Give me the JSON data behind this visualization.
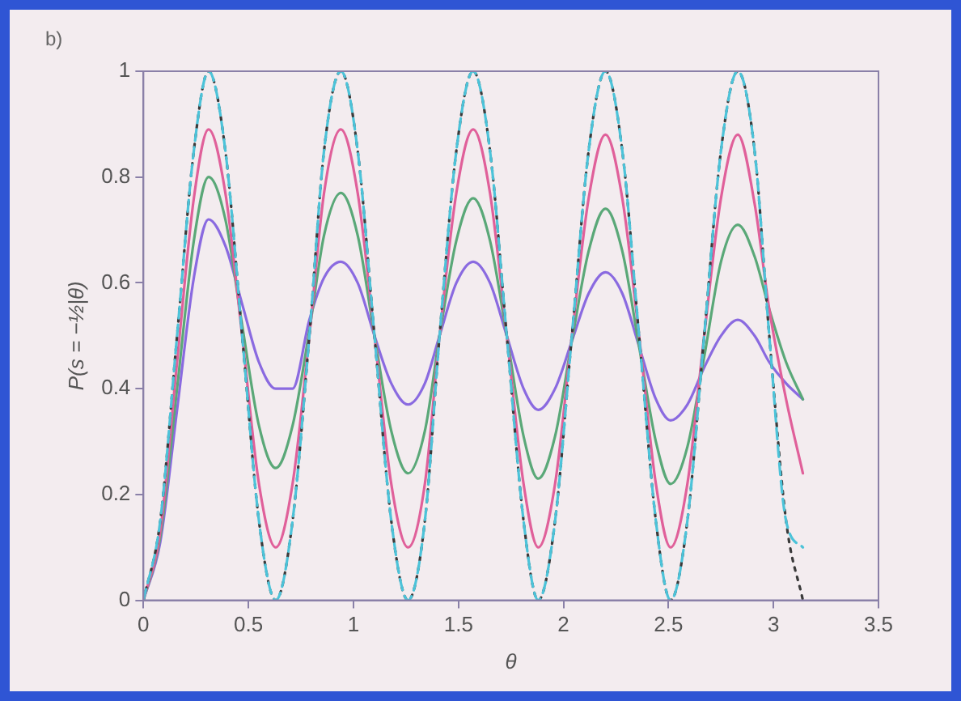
{
  "chart_data": {
    "type": "line",
    "annotations": [
      "b)"
    ],
    "xlabel": "θ",
    "ylabel": "P(s = −½|θ)",
    "x": [
      0,
      0.08,
      0.16,
      0.24,
      0.31,
      0.39,
      0.47,
      0.55,
      0.63,
      0.71,
      0.79,
      0.86,
      0.94,
      1.02,
      1.1,
      1.18,
      1.26,
      1.34,
      1.41,
      1.49,
      1.57,
      1.65,
      1.73,
      1.81,
      1.88,
      1.96,
      2.04,
      2.12,
      2.2,
      2.28,
      2.36,
      2.44,
      2.51,
      2.59,
      2.67,
      2.75,
      2.83,
      2.91,
      2.98,
      3.06,
      3.14
    ],
    "series": [
      {
        "color": "#4cc3d9",
        "line_style": "dashed",
        "values": [
          0,
          0.15,
          0.5,
          0.85,
          1,
          0.85,
          0.5,
          0.15,
          0,
          0.15,
          0.5,
          0.85,
          1,
          0.85,
          0.5,
          0.15,
          0,
          0.15,
          0.5,
          0.85,
          1,
          0.85,
          0.5,
          0.15,
          0,
          0.15,
          0.5,
          0.85,
          1,
          0.85,
          0.5,
          0.15,
          0,
          0.15,
          0.5,
          0.85,
          1,
          0.85,
          0.5,
          0.15,
          0.1
        ]
      },
      {
        "color": "#3a3a3a",
        "line_style": "dotted",
        "values": [
          0,
          0.15,
          0.5,
          0.85,
          1,
          0.85,
          0.5,
          0.15,
          0,
          0.15,
          0.5,
          0.85,
          1,
          0.85,
          0.5,
          0.15,
          0,
          0.15,
          0.5,
          0.85,
          1,
          0.85,
          0.5,
          0.15,
          0,
          0.15,
          0.5,
          0.85,
          1,
          0.85,
          0.5,
          0.15,
          0,
          0.15,
          0.5,
          0.85,
          1,
          0.85,
          0.5,
          0.15,
          0
        ]
      },
      {
        "color": "#e0609a",
        "line_style": "solid",
        "values": [
          0,
          0.13,
          0.45,
          0.76,
          0.89,
          0.77,
          0.5,
          0.22,
          0.1,
          0.22,
          0.5,
          0.77,
          0.89,
          0.77,
          0.5,
          0.22,
          0.1,
          0.22,
          0.5,
          0.77,
          0.89,
          0.77,
          0.5,
          0.22,
          0.1,
          0.22,
          0.5,
          0.76,
          0.88,
          0.76,
          0.5,
          0.22,
          0.1,
          0.22,
          0.5,
          0.76,
          0.88,
          0.75,
          0.55,
          0.38,
          0.24
        ]
      },
      {
        "color": "#5aa878",
        "line_style": "solid",
        "values": [
          0,
          0.12,
          0.4,
          0.68,
          0.8,
          0.72,
          0.52,
          0.33,
          0.25,
          0.33,
          0.51,
          0.69,
          0.77,
          0.69,
          0.5,
          0.32,
          0.24,
          0.32,
          0.5,
          0.68,
          0.76,
          0.68,
          0.5,
          0.31,
          0.23,
          0.31,
          0.49,
          0.66,
          0.74,
          0.66,
          0.48,
          0.3,
          0.22,
          0.29,
          0.46,
          0.64,
          0.71,
          0.65,
          0.55,
          0.45,
          0.38
        ]
      },
      {
        "color": "#8a6ae0",
        "line_style": "solid",
        "values": [
          0,
          0.11,
          0.36,
          0.61,
          0.72,
          0.67,
          0.56,
          0.45,
          0.4,
          0.4,
          0.53,
          0.61,
          0.64,
          0.6,
          0.5,
          0.41,
          0.37,
          0.41,
          0.5,
          0.6,
          0.64,
          0.6,
          0.5,
          0.4,
          0.36,
          0.4,
          0.49,
          0.58,
          0.62,
          0.58,
          0.48,
          0.38,
          0.34,
          0.37,
          0.44,
          0.5,
          0.53,
          0.5,
          0.45,
          0.41,
          0.38
        ]
      }
    ],
    "xlim": [
      0,
      3.5
    ],
    "xticks": [
      0,
      0.5,
      1,
      1.5,
      2,
      2.5,
      3,
      3.5
    ],
    "ylim": [
      0,
      1
    ],
    "yticks": [
      0,
      0.2,
      0.4,
      0.6,
      0.8,
      1
    ],
    "grid": false,
    "legend": false,
    "marker": "none"
  }
}
